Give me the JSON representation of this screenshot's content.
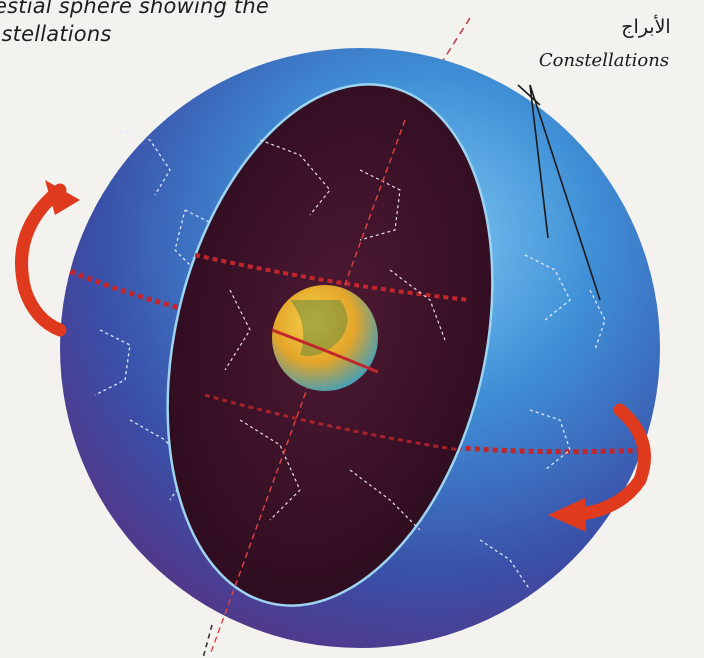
{
  "caption": {
    "line1": "lestial sphere showing the",
    "line2": "nstellations"
  },
  "labels": {
    "arabic": "الأبراج",
    "english": "Constellations"
  },
  "colors": {
    "sphere_outer": "#3f8fd6",
    "sphere_shadow": "#5a2f7e",
    "cutaway_interior": "#3a0f24",
    "equator_dashes": "#c0262c",
    "rotation_arrows": "#e03a1e",
    "earth": "#e3a52a"
  },
  "icons": [
    "rotation-arrow-icon",
    "earth-icon",
    "constellation-icon"
  ]
}
